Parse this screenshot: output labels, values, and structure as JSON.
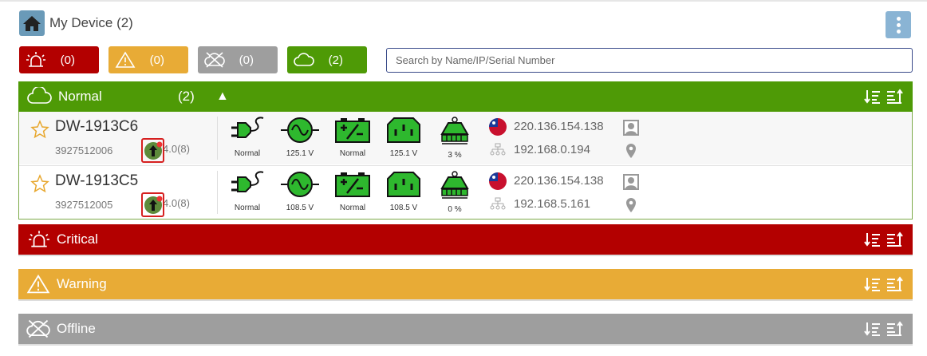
{
  "header": {
    "title": "My Device (2)",
    "menu_icon": "kebab-menu-icon"
  },
  "filters": [
    {
      "name": "critical",
      "count": "(0)",
      "color": "#b30000",
      "icon": "alarm-icon"
    },
    {
      "name": "warning",
      "count": "(0)",
      "color": "#e8ab36",
      "icon": "warning-icon"
    },
    {
      "name": "offline",
      "count": "(0)",
      "color": "#9e9e9e",
      "icon": "offline-icon"
    },
    {
      "name": "normal",
      "count": "(2)",
      "color": "#4e9a06",
      "icon": "cloud-icon"
    }
  ],
  "search": {
    "placeholder": "Search by Name/IP/Serial Number",
    "value": ""
  },
  "groups": {
    "normal": {
      "label": "Normal",
      "count": "(2)",
      "color": "#4e9a06"
    },
    "critical": {
      "label": "Critical",
      "color": "#b30000"
    },
    "warning": {
      "label": "Warning",
      "color": "#e8ab36"
    },
    "offline": {
      "label": "Offline",
      "color": "#9e9e9e"
    }
  },
  "devices": [
    {
      "name": "DW-1913C6",
      "serial": "3927512006",
      "firmware": "4.0(8)",
      "stats": [
        "Normal",
        "125.1 V",
        "Normal",
        "125.1 V",
        "3 %"
      ],
      "public_ip": "220.136.154.138",
      "local_ip": "192.168.0.194"
    },
    {
      "name": "DW-1913C5",
      "serial": "3927512005",
      "firmware": "4.0(8)",
      "stats": [
        "Normal",
        "108.5 V",
        "Normal",
        "108.5 V",
        "0 %"
      ],
      "public_ip": "220.136.154.138",
      "local_ip": "192.168.5.161"
    }
  ]
}
